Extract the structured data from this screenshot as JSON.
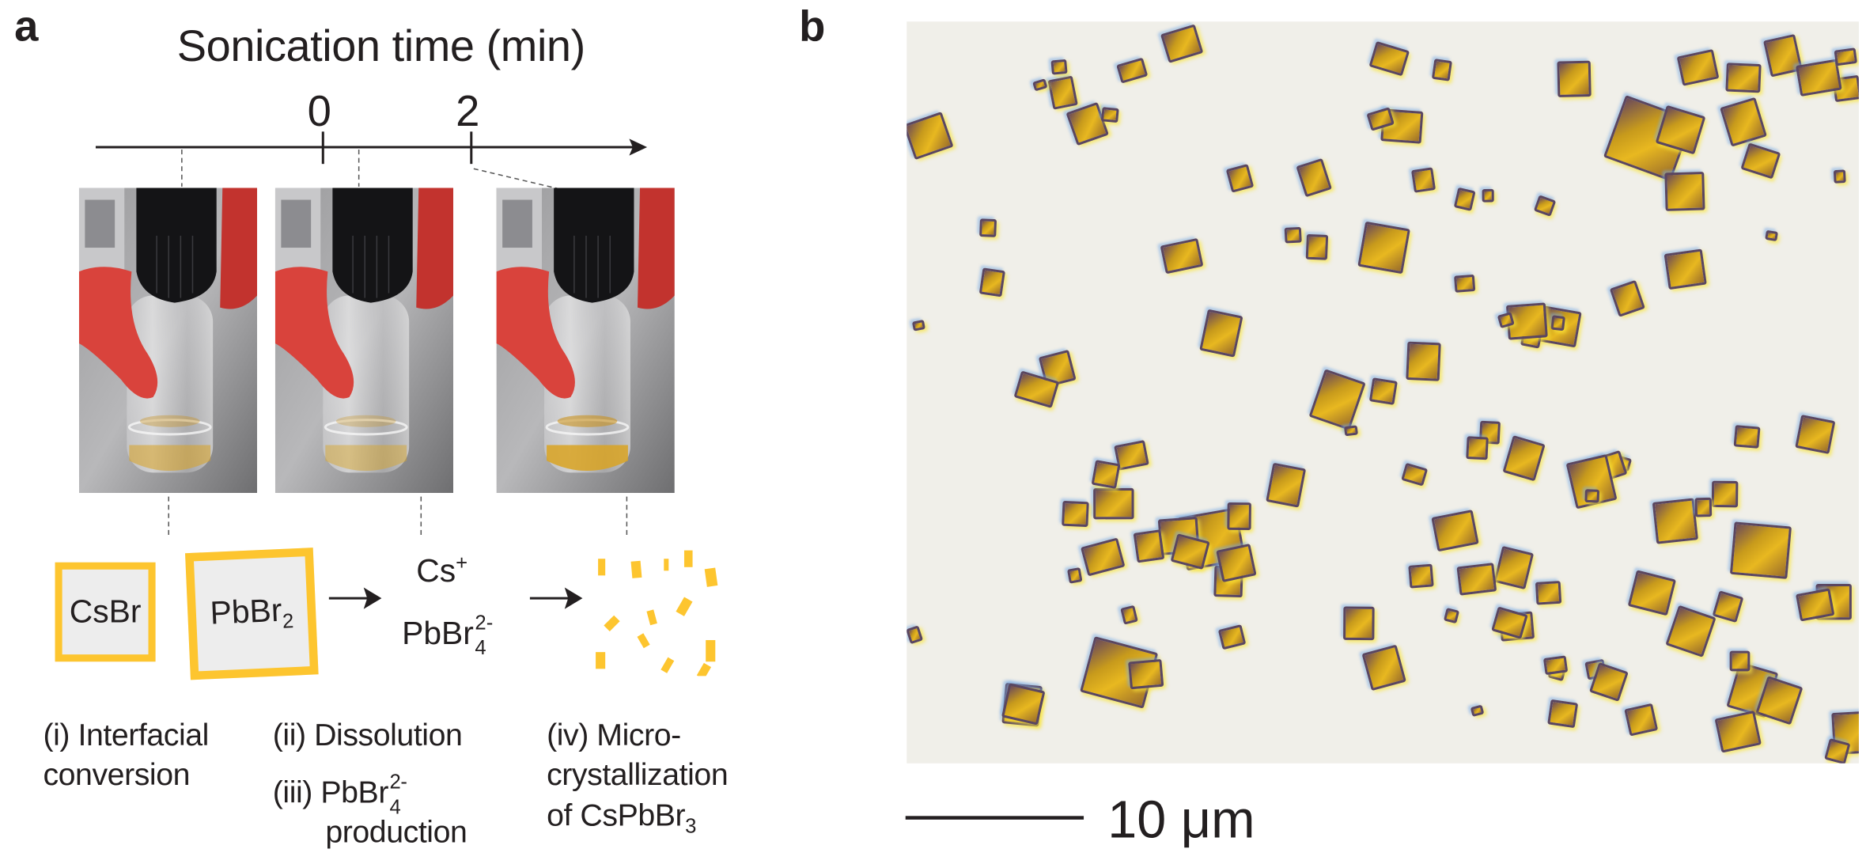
{
  "panel_a": {
    "label": "a",
    "timeline": {
      "title": "Sonication time (min)",
      "ticks": [
        "0",
        "2"
      ]
    },
    "species": {
      "csbr": "CsBr",
      "pbbr2": {
        "base": "PbBr",
        "sub": "2"
      },
      "cs_ion": {
        "base": "Cs",
        "sup": "+"
      },
      "pbbr4_ion": {
        "base": "PbBr",
        "sub": "4",
        "sup": "2-"
      }
    },
    "steps": {
      "i": {
        "line1": "(i) Interfacial",
        "line2": "conversion"
      },
      "ii": {
        "line1": "(ii) Dissolution"
      },
      "iii": {
        "prefix": "(iii) PbBr",
        "sub": "4",
        "sup": "2-",
        "line2": "production"
      },
      "iv": {
        "line1": "(iv) Micro-",
        "line2": "crystallization",
        "line3_base": "of CsPbBr",
        "line3_sub": "3"
      }
    }
  },
  "panel_b": {
    "label": "b",
    "scale_bar": "10 μm"
  },
  "colors": {
    "crystal_yellow": "#fdc52f",
    "box_fill": "#ededed",
    "text": "#231f20",
    "micrograph_background": "#f0efe9",
    "nozzle_red": "#d9433c"
  }
}
